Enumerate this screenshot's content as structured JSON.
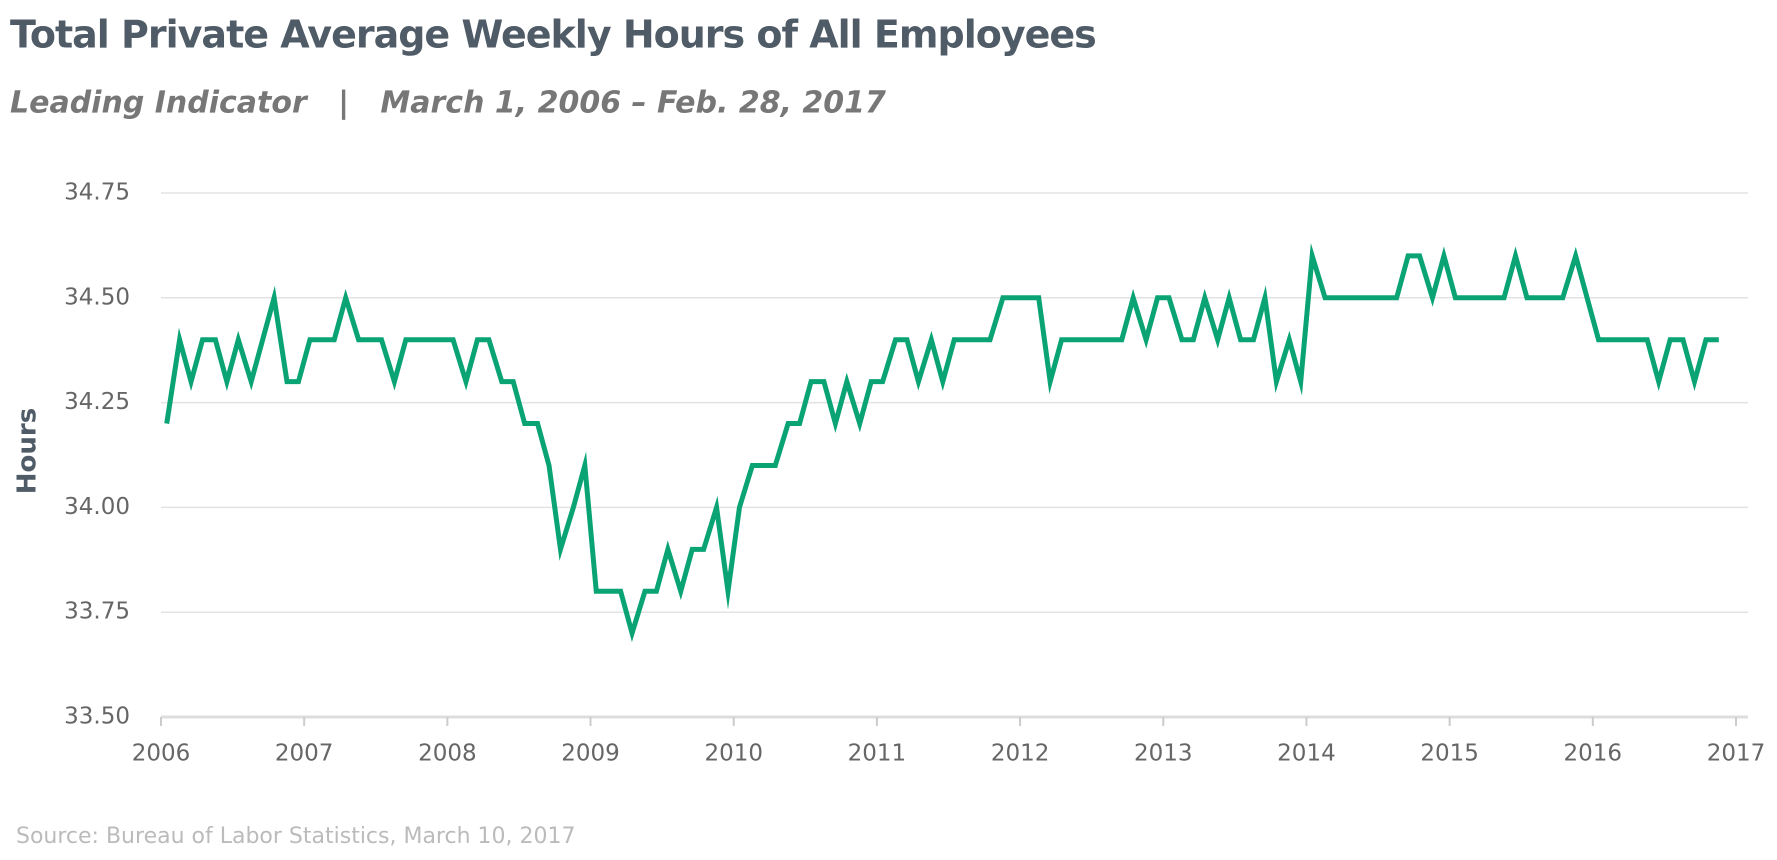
{
  "chart_data": {
    "type": "line",
    "title": "Total Private Average Weekly Hours of All Employees",
    "subtitle": "Leading Indicator   |   March 1, 2006 – Feb. 28, 2017",
    "y_label": "Hours",
    "source": "Source: Bureau of Labor Statistics, March 10, 2017",
    "color": "#0aa374",
    "grid": true,
    "xlim": [
      2006,
      2017
    ],
    "xticks": [
      2006,
      2007,
      2008,
      2009,
      2010,
      2011,
      2012,
      2013,
      2014,
      2015,
      2016,
      2017
    ],
    "ylim": [
      33.5,
      34.75
    ],
    "yticks": [
      {
        "value": 33.5,
        "label": "33.50"
      },
      33.75,
      {
        "value": 34,
        "label": "34.00"
      },
      34.25,
      {
        "value": 34.5,
        "label": "34.50"
      },
      34.75
    ],
    "x": [
      2006.04,
      2006.13,
      2006.21,
      2006.29,
      2006.38,
      2006.46,
      2006.54,
      2006.63,
      2006.71,
      2006.79,
      2006.88,
      2006.96,
      2007.04,
      2007.13,
      2007.21,
      2007.29,
      2007.38,
      2007.46,
      2007.54,
      2007.63,
      2007.71,
      2007.79,
      2007.88,
      2007.96,
      2008.04,
      2008.13,
      2008.21,
      2008.29,
      2008.38,
      2008.46,
      2008.54,
      2008.63,
      2008.71,
      2008.79,
      2008.88,
      2008.96,
      2009.04,
      2009.13,
      2009.21,
      2009.29,
      2009.38,
      2009.46,
      2009.54,
      2009.63,
      2009.71,
      2009.79,
      2009.88,
      2009.96,
      2010.04,
      2010.13,
      2010.21,
      2010.29,
      2010.38,
      2010.46,
      2010.54,
      2010.63,
      2010.71,
      2010.79,
      2010.88,
      2010.96,
      2011.04,
      2011.13,
      2011.21,
      2011.29,
      2011.38,
      2011.46,
      2011.54,
      2011.63,
      2011.71,
      2011.79,
      2011.88,
      2011.96,
      2012.04,
      2012.13,
      2012.21,
      2012.29,
      2012.38,
      2012.46,
      2012.54,
      2012.63,
      2012.71,
      2012.79,
      2012.88,
      2012.96,
      2013.04,
      2013.13,
      2013.21,
      2013.29,
      2013.38,
      2013.46,
      2013.54,
      2013.63,
      2013.71,
      2013.79,
      2013.88,
      2013.96,
      2014.04,
      2014.13,
      2014.21,
      2014.29,
      2014.38,
      2014.46,
      2014.54,
      2014.63,
      2014.71,
      2014.79,
      2014.88,
      2014.96,
      2015.04,
      2015.13,
      2015.21,
      2015.29,
      2015.38,
      2015.46,
      2015.54,
      2015.63,
      2015.71,
      2015.79,
      2015.88,
      2015.96,
      2016.04,
      2016.13,
      2016.21,
      2016.29,
      2016.38,
      2016.46,
      2016.54,
      2016.63,
      2016.71,
      2016.79,
      2016.88
    ],
    "values": [
      34.2,
      34.4,
      34.3,
      34.4,
      34.4,
      34.3,
      34.4,
      34.3,
      34.4,
      34.5,
      34.3,
      34.3,
      34.4,
      34.4,
      34.4,
      34.5,
      34.4,
      34.4,
      34.4,
      34.3,
      34.4,
      34.4,
      34.4,
      34.4,
      34.4,
      34.3,
      34.4,
      34.4,
      34.3,
      34.3,
      34.2,
      34.2,
      34.1,
      33.9,
      34.0,
      34.1,
      33.8,
      33.8,
      33.8,
      33.7,
      33.8,
      33.8,
      33.9,
      33.8,
      33.9,
      33.9,
      34.0,
      33.8,
      34.0,
      34.1,
      34.1,
      34.1,
      34.2,
      34.2,
      34.3,
      34.3,
      34.2,
      34.3,
      34.2,
      34.3,
      34.3,
      34.4,
      34.4,
      34.3,
      34.4,
      34.3,
      34.4,
      34.4,
      34.4,
      34.4,
      34.5,
      34.5,
      34.5,
      34.5,
      34.3,
      34.4,
      34.4,
      34.4,
      34.4,
      34.4,
      34.4,
      34.5,
      34.4,
      34.5,
      34.5,
      34.4,
      34.4,
      34.5,
      34.4,
      34.5,
      34.4,
      34.4,
      34.5,
      34.3,
      34.4,
      34.3,
      34.6,
      34.5,
      34.5,
      34.5,
      34.5,
      34.5,
      34.5,
      34.5,
      34.6,
      34.6,
      34.5,
      34.6,
      34.5,
      34.5,
      34.5,
      34.5,
      34.5,
      34.6,
      34.5,
      34.5,
      34.5,
      34.5,
      34.6,
      34.5,
      34.4,
      34.4,
      34.4,
      34.4,
      34.4,
      34.3,
      34.4,
      34.4,
      34.3,
      34.4,
      34.4
    ]
  }
}
